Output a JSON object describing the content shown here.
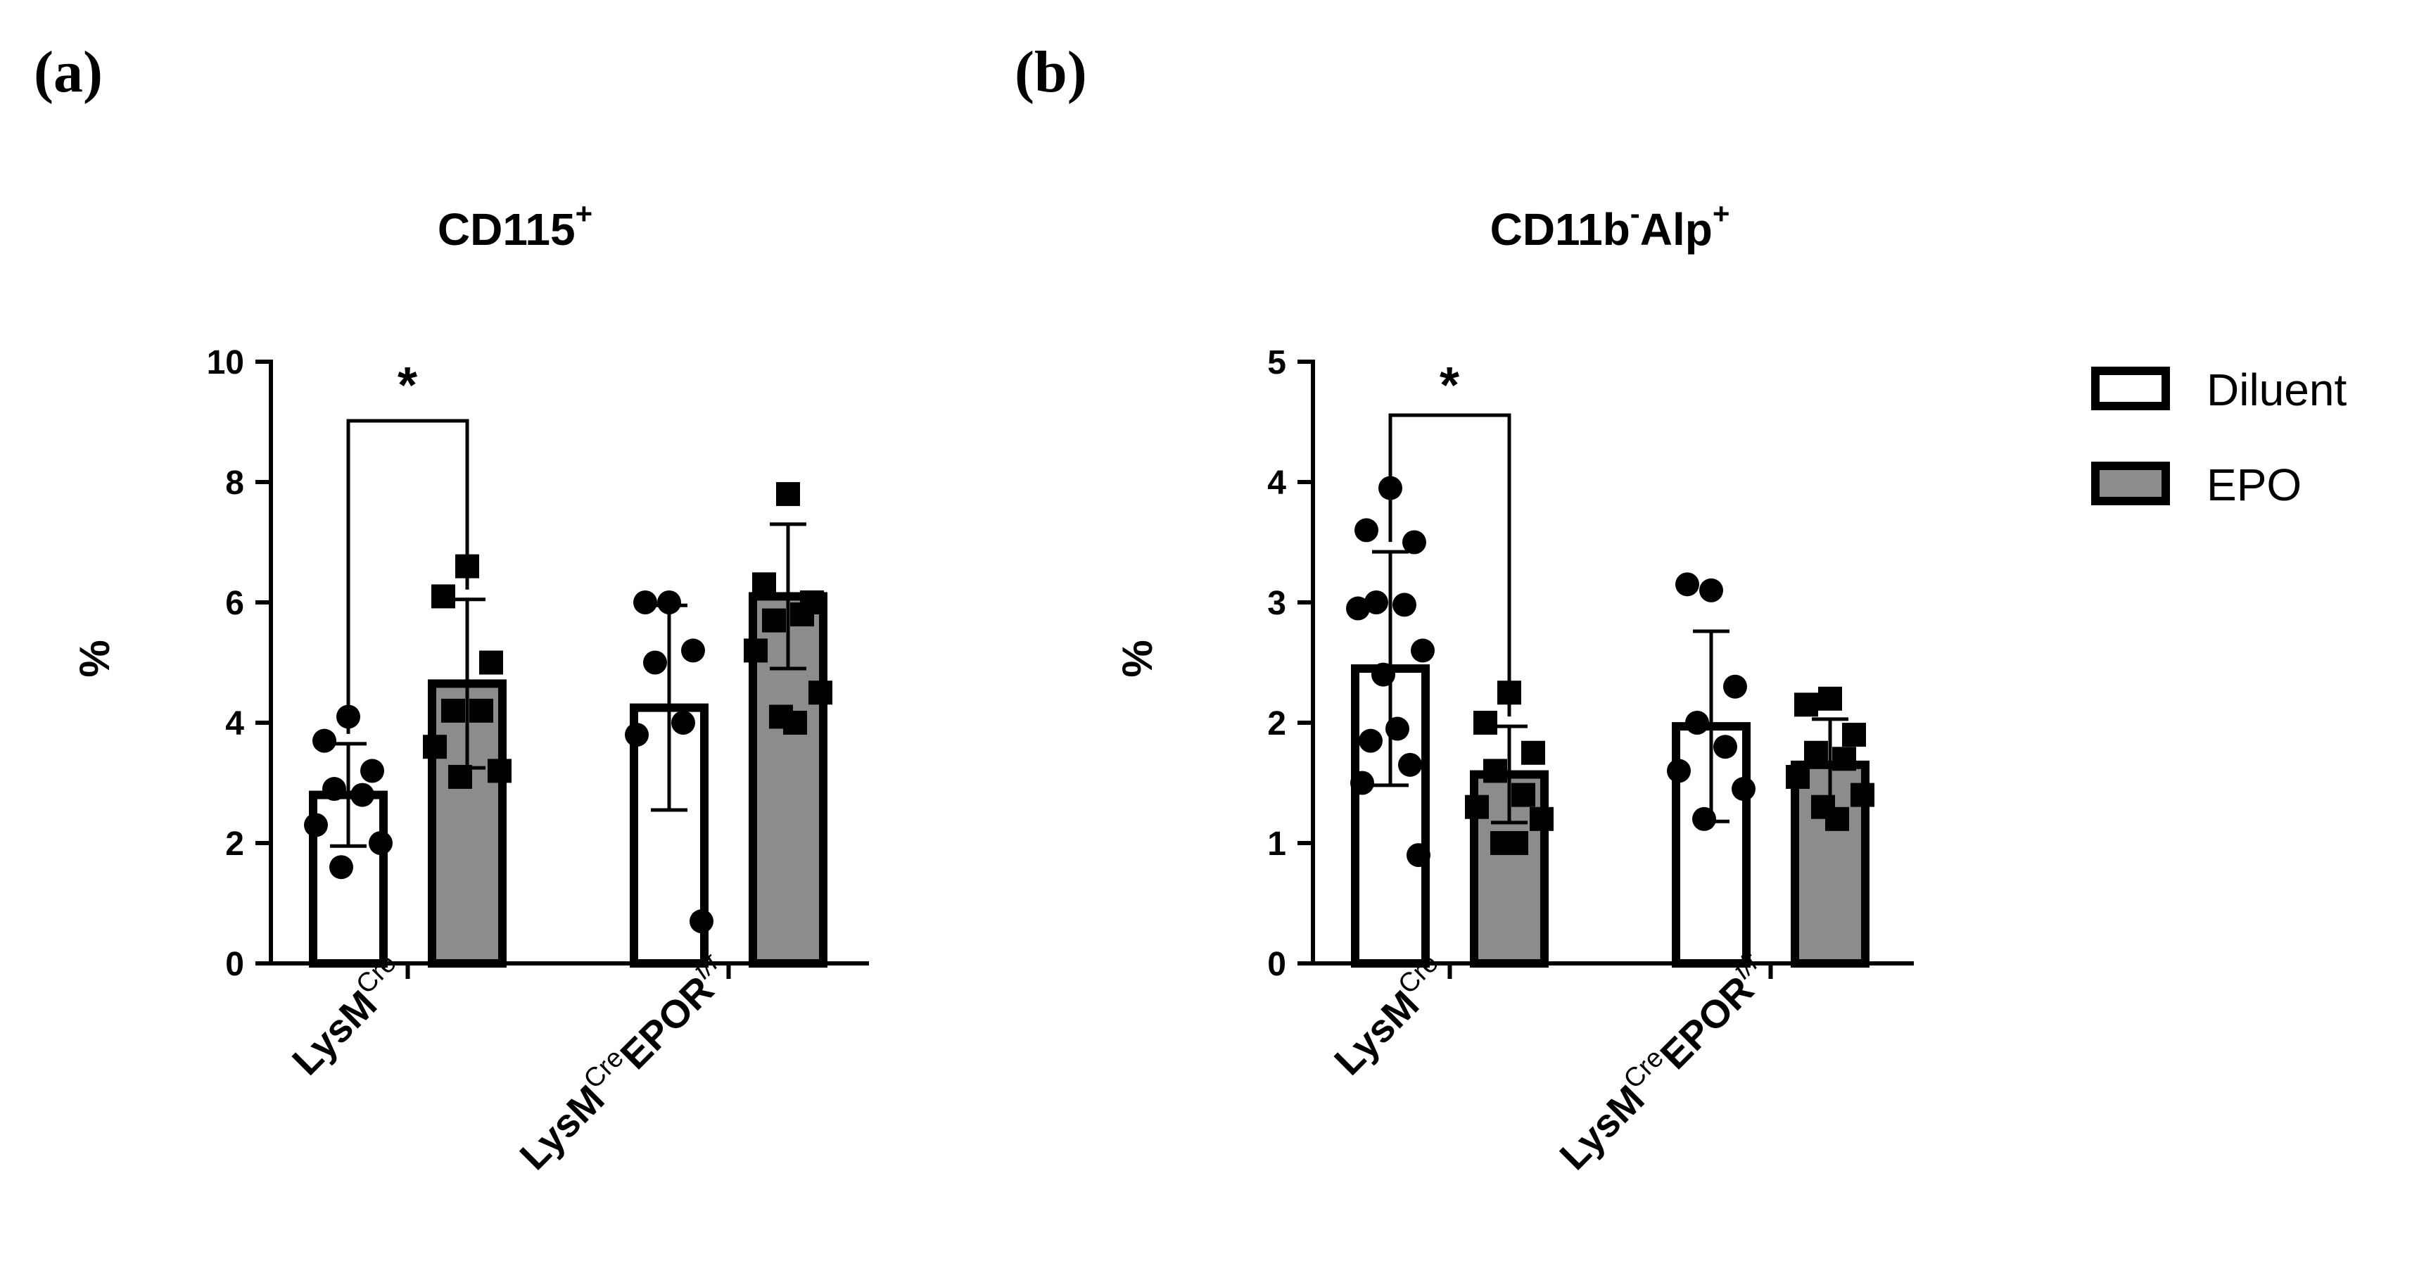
{
  "panel_labels": [
    "(a)",
    "(b)"
  ],
  "legend": {
    "entries": [
      {
        "label": "Diluent",
        "color": "#ffffff"
      },
      {
        "label": "EPO",
        "color": "#8c8c8c"
      }
    ]
  },
  "chart_data": [
    {
      "type": "bar",
      "panel": "(a)",
      "title_main": "CD115",
      "title_sup": "+",
      "ylabel": "%",
      "ylim": [
        0,
        10
      ],
      "yticks": [
        0,
        2,
        4,
        6,
        8,
        10
      ],
      "categories": [
        {
          "base": "LysM",
          "sup1": "Cre",
          "mid": "",
          "sup2": ""
        },
        {
          "base": "LysM",
          "sup1": "Cre",
          "mid": "EPOR",
          "sup2": "f/f"
        }
      ],
      "series": [
        {
          "name": "Diluent",
          "color": "#ffffff",
          "marker": "circle",
          "values": [
            2.8,
            4.25
          ],
          "sd": [
            0.85,
            1.7
          ],
          "points": [
            [
              4.1,
              3.7,
              3.2,
              2.9,
              2.8,
              2.3,
              2.0,
              1.6
            ],
            [
              6.0,
              6.0,
              5.2,
              5.0,
              4.0,
              3.8,
              0.7
            ]
          ]
        },
        {
          "name": "EPO",
          "color": "#8c8c8c",
          "marker": "square",
          "values": [
            4.65,
            6.1
          ],
          "sd": [
            1.4,
            1.2
          ],
          "points": [
            [
              6.6,
              6.1,
              5.0,
              4.2,
              4.2,
              3.6,
              3.2,
              3.1
            ],
            [
              7.8,
              6.3,
              6.0,
              5.7,
              5.8,
              5.2,
              4.5,
              4.1,
              4.0
            ]
          ]
        }
      ],
      "significance": {
        "label": "*",
        "category": 0
      }
    },
    {
      "type": "bar",
      "panel": "(b)",
      "title_main": "CD11b",
      "title_sup": "-",
      "title_main2": "Alp",
      "title_sup2": "+",
      "ylabel": "%",
      "ylim": [
        0,
        5
      ],
      "yticks": [
        0,
        1,
        2,
        3,
        4,
        5
      ],
      "categories": [
        {
          "base": "LysM",
          "sup1": "Cre",
          "mid": "",
          "sup2": ""
        },
        {
          "base": "LysM",
          "sup1": "Cre",
          "mid": "EPOR",
          "sup2": "f/f"
        }
      ],
      "series": [
        {
          "name": "Diluent",
          "color": "#ffffff",
          "marker": "circle",
          "values": [
            2.45,
            1.97
          ],
          "sd": [
            0.97,
            0.79
          ],
          "points": [
            [
              3.95,
              3.6,
              3.5,
              3.0,
              2.98,
              2.95,
              2.6,
              2.4,
              1.95,
              1.85,
              1.65,
              1.5,
              0.9
            ],
            [
              3.1,
              3.15,
              2.3,
              2.0,
              1.8,
              1.6,
              1.45,
              1.2
            ]
          ]
        },
        {
          "name": "EPO",
          "color": "#8c8c8c",
          "marker": "square",
          "values": [
            1.57,
            1.65
          ],
          "sd": [
            0.4,
            0.38
          ],
          "points": [
            [
              2.25,
              2.0,
              1.75,
              1.6,
              1.4,
              1.3,
              1.2,
              1.0,
              1.0
            ],
            [
              2.2,
              2.15,
              1.9,
              1.75,
              1.7,
              1.55,
              1.4,
              1.3,
              1.2
            ]
          ]
        }
      ],
      "significance": {
        "label": "*",
        "category": 0
      }
    }
  ]
}
